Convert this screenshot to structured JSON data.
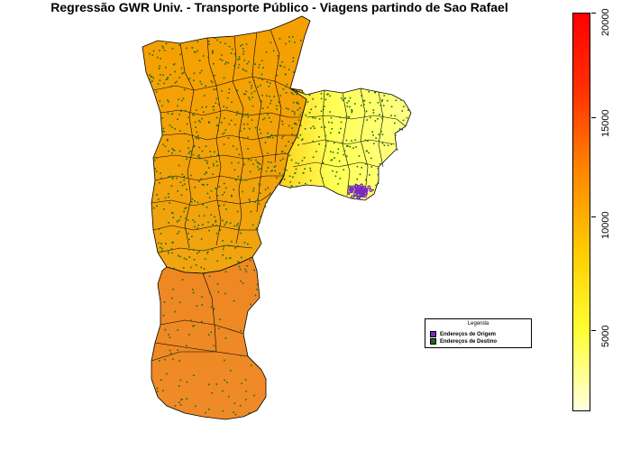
{
  "title": "Regressão GWR Univ. - Transporte Público - Viagens partindo de Sao Rafael",
  "legend": {
    "title": "Legenda",
    "items": [
      {
        "label": "Endereços de Origem",
        "color": "#7b2bbf"
      },
      {
        "label": "Endereços de Destino",
        "color": "#1a6b1a"
      }
    ]
  },
  "colorbar": {
    "min": 0,
    "max": 20000,
    "ticks": [
      "5000",
      "10000",
      "15000",
      "20000"
    ],
    "colors": [
      "#ffffe0",
      "#ffff33",
      "#ffcc00",
      "#ff8800",
      "#ff3300",
      "#ff0000"
    ]
  },
  "colors": {
    "west_region": "#f5a000",
    "south_region": "#ee8822",
    "east_region": "#ffff55",
    "boundary": "#000000",
    "origin_points": "#7b2bbf",
    "destination_points": "#1a6b1a"
  }
}
